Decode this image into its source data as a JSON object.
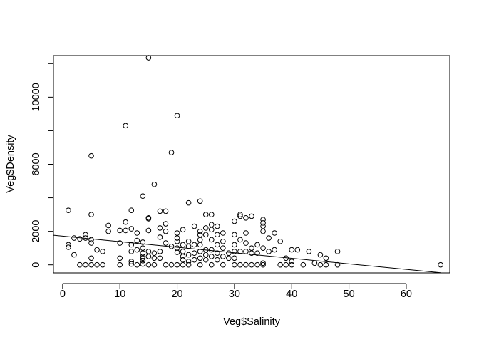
{
  "chart_data": {
    "type": "scatter",
    "title": "",
    "xlabel": "Veg$Salinity",
    "ylabel": "Veg$Density",
    "xlim": [
      -1.6,
      67.6
    ],
    "ylim": [
      -480,
      12480
    ],
    "x_ticks": [
      0,
      10,
      20,
      30,
      40,
      50,
      60
    ],
    "x_tick_labels": [
      "0",
      "10",
      "20",
      "30",
      "40",
      "50",
      "60"
    ],
    "y_ticks": [
      0,
      2000,
      6000,
      10000
    ],
    "y_tick_labels": [
      "0",
      "2000",
      "6000",
      "10000"
    ],
    "y_minor_ticks": [
      4000,
      8000,
      12000
    ],
    "grid": false,
    "legend": "none",
    "marker": "open-circle",
    "color": "#000000",
    "regression_line": {
      "x": [
        -1.6,
        66
      ],
      "y": [
        1766,
        -470
      ]
    },
    "points": [
      [
        1,
        3250
      ],
      [
        1,
        1200
      ],
      [
        1,
        1050
      ],
      [
        2,
        600
      ],
      [
        2,
        1600
      ],
      [
        3,
        0
      ],
      [
        3,
        1550
      ],
      [
        4,
        1600
      ],
      [
        4,
        1800
      ],
      [
        4,
        0
      ],
      [
        5,
        1300
      ],
      [
        5,
        1500
      ],
      [
        5,
        6500
      ],
      [
        5,
        0
      ],
      [
        5,
        400
      ],
      [
        5,
        3000
      ],
      [
        6,
        0
      ],
      [
        6,
        900
      ],
      [
        7,
        0
      ],
      [
        7,
        800
      ],
      [
        8,
        2350
      ],
      [
        8,
        2000
      ],
      [
        10,
        0
      ],
      [
        10,
        2050
      ],
      [
        10,
        1300
      ],
      [
        10,
        400
      ],
      [
        11,
        8300
      ],
      [
        11,
        2050
      ],
      [
        11,
        2550
      ],
      [
        12,
        3250
      ],
      [
        12,
        2150
      ],
      [
        12,
        1200
      ],
      [
        12,
        800
      ],
      [
        12,
        200
      ],
      [
        12,
        50
      ],
      [
        13,
        1900
      ],
      [
        13,
        1450
      ],
      [
        13,
        900
      ],
      [
        13,
        0
      ],
      [
        14,
        4100
      ],
      [
        14,
        1350
      ],
      [
        14,
        1000
      ],
      [
        14,
        700
      ],
      [
        14,
        500
      ],
      [
        14,
        400
      ],
      [
        14,
        250
      ],
      [
        14,
        50
      ],
      [
        15,
        12350
      ],
      [
        15,
        2800
      ],
      [
        15,
        2750
      ],
      [
        15,
        2050
      ],
      [
        15,
        800
      ],
      [
        15,
        500
      ],
      [
        15,
        0
      ],
      [
        16,
        4800
      ],
      [
        16,
        700
      ],
      [
        16,
        400
      ],
      [
        16,
        0
      ],
      [
        17,
        3200
      ],
      [
        17,
        2200
      ],
      [
        17,
        1650
      ],
      [
        17,
        800
      ],
      [
        17,
        400
      ],
      [
        18,
        3200
      ],
      [
        18,
        2450
      ],
      [
        18,
        2000
      ],
      [
        18,
        1300
      ],
      [
        18,
        0
      ],
      [
        19,
        6700
      ],
      [
        19,
        0
      ],
      [
        19,
        1100
      ],
      [
        20,
        8900
      ],
      [
        20,
        1900
      ],
      [
        20,
        1600
      ],
      [
        20,
        1400
      ],
      [
        20,
        1000
      ],
      [
        20,
        750
      ],
      [
        20,
        0
      ],
      [
        21,
        1200
      ],
      [
        21,
        800
      ],
      [
        21,
        500
      ],
      [
        21,
        300
      ],
      [
        21,
        0
      ],
      [
        21,
        2100
      ],
      [
        22,
        3700
      ],
      [
        22,
        1400
      ],
      [
        22,
        1100
      ],
      [
        22,
        600
      ],
      [
        22,
        200
      ],
      [
        22,
        0
      ],
      [
        23,
        2300
      ],
      [
        23,
        1200
      ],
      [
        23,
        700
      ],
      [
        23,
        300
      ],
      [
        24,
        3800
      ],
      [
        24,
        2000
      ],
      [
        24,
        1800
      ],
      [
        24,
        1500
      ],
      [
        24,
        1200
      ],
      [
        24,
        800
      ],
      [
        24,
        400
      ],
      [
        24,
        0
      ],
      [
        25,
        3000
      ],
      [
        25,
        2200
      ],
      [
        25,
        1800
      ],
      [
        25,
        900
      ],
      [
        25,
        600
      ],
      [
        25,
        300
      ],
      [
        26,
        3000
      ],
      [
        26,
        2400
      ],
      [
        26,
        2100
      ],
      [
        26,
        1500
      ],
      [
        26,
        900
      ],
      [
        26,
        500
      ],
      [
        26,
        0
      ],
      [
        27,
        2300
      ],
      [
        27,
        1800
      ],
      [
        27,
        1200
      ],
      [
        27,
        700
      ],
      [
        27,
        300
      ],
      [
        28,
        1900
      ],
      [
        28,
        1400
      ],
      [
        28,
        1000
      ],
      [
        28,
        500
      ],
      [
        28,
        0
      ],
      [
        29,
        700
      ],
      [
        29,
        400
      ],
      [
        30,
        2600
      ],
      [
        30,
        1800
      ],
      [
        30,
        1200
      ],
      [
        30,
        800
      ],
      [
        30,
        400
      ],
      [
        30,
        0
      ],
      [
        31,
        3000
      ],
      [
        31,
        2900
      ],
      [
        31,
        1500
      ],
      [
        31,
        800
      ],
      [
        31,
        0
      ],
      [
        32,
        2800
      ],
      [
        32,
        1900
      ],
      [
        32,
        1300
      ],
      [
        32,
        800
      ],
      [
        32,
        0
      ],
      [
        33,
        2900
      ],
      [
        33,
        1000
      ],
      [
        33,
        700
      ],
      [
        33,
        0
      ],
      [
        34,
        1200
      ],
      [
        34,
        700
      ],
      [
        34,
        0
      ],
      [
        35,
        2700
      ],
      [
        35,
        2500
      ],
      [
        35,
        2300
      ],
      [
        35,
        2000
      ],
      [
        35,
        1000
      ],
      [
        35,
        100
      ],
      [
        35,
        0
      ],
      [
        36,
        1600
      ],
      [
        36,
        800
      ],
      [
        37,
        1900
      ],
      [
        37,
        900
      ],
      [
        38,
        1400
      ],
      [
        38,
        0
      ],
      [
        39,
        400
      ],
      [
        39,
        0
      ],
      [
        40,
        900
      ],
      [
        40,
        200
      ],
      [
        40,
        0
      ],
      [
        41,
        900
      ],
      [
        42,
        0
      ],
      [
        43,
        800
      ],
      [
        44,
        100
      ],
      [
        45,
        600
      ],
      [
        45,
        0
      ],
      [
        46,
        400
      ],
      [
        46,
        0
      ],
      [
        48,
        800
      ],
      [
        48,
        0
      ],
      [
        66,
        0
      ]
    ]
  }
}
